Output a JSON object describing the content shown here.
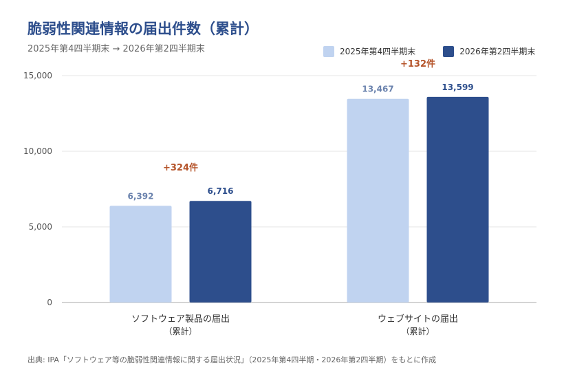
{
  "title": "脆弱性関連情報の届出件数（累計）",
  "subtitle": "2025年第4四半期末 → 2026年第2四半期末",
  "source": "出典: IPA「ソフトウェア等の脆弱性関連情報に関する届出状況」（2025年第4四半期・2026年第2四半期）をもとに作成",
  "colors": {
    "series_light": "#c0d3f0",
    "series_dark": "#2d4e8c",
    "value_light": "#6a82ad",
    "value_dark": "#2d4e8c",
    "delta": "#b5542a",
    "grid": "#e6e6e6",
    "axis": "#bbbbbb"
  },
  "chart_data": {
    "type": "bar",
    "categories": [
      {
        "line1": "ソフトウェア製品の届出",
        "line2": "（累計）"
      },
      {
        "line1": "ウェブサイトの届出",
        "line2": "（累計）"
      }
    ],
    "series": [
      {
        "name": "2025年第4四半期末",
        "values": [
          6392,
          13467
        ],
        "labels": [
          "6,392",
          "13,467"
        ]
      },
      {
        "name": "2026年第2四半期末",
        "values": [
          6716,
          13599
        ],
        "labels": [
          "6,716",
          "13,599"
        ]
      }
    ],
    "deltas": [
      "+324件",
      "+132件"
    ],
    "ylim": [
      0,
      15000
    ],
    "yticks": [
      0,
      5000,
      10000,
      15000
    ],
    "ytick_labels": [
      "0",
      "5,000",
      "10,000",
      "15,000"
    ],
    "grid": true,
    "legend": "top-right"
  }
}
